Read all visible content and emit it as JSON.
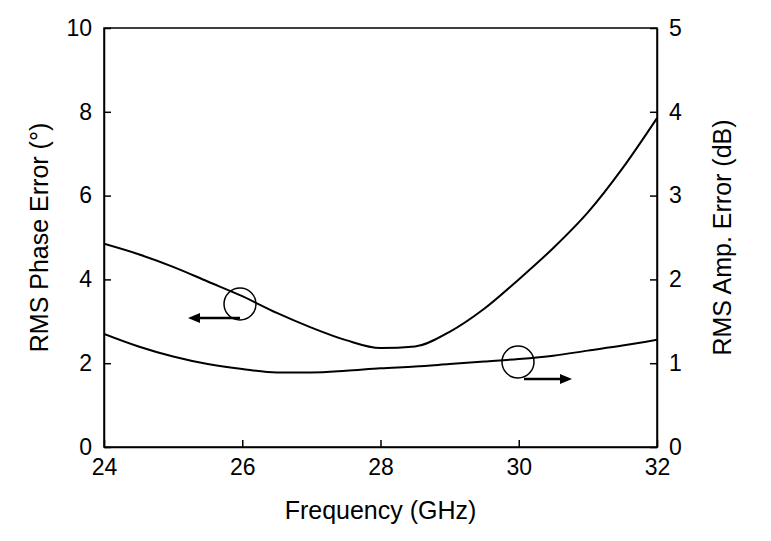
{
  "chart_data": {
    "type": "line",
    "x_label": "Frequency (GHz)",
    "y_label": "RMS Phase Error (°)",
    "y2_label": "RMS Amp. Error (dB)",
    "x": [
      24,
      24.5,
      25,
      25.5,
      26,
      26.5,
      27,
      27.5,
      28,
      28.5,
      29,
      29.5,
      30,
      30.5,
      31,
      31.5,
      32
    ],
    "series": [
      {
        "color": "#000000",
        "values": [
          4.85,
          4.6,
          4.3,
          3.95,
          3.6,
          3.2,
          2.85,
          2.55,
          2.36,
          2.4,
          2.75,
          3.3,
          4.0,
          4.75,
          5.6,
          6.65,
          7.85
        ]
      },
      {
        "color": "#000000",
        "axis": "y2",
        "values": [
          1.35,
          1.2,
          1.08,
          0.99,
          0.93,
          0.89,
          0.89,
          0.91,
          0.94,
          0.96,
          0.99,
          1.02,
          1.05,
          1.09,
          1.15,
          1.21,
          1.28
        ]
      }
    ],
    "xlim": [
      24,
      32
    ],
    "xticks": [
      24,
      26,
      28,
      30,
      32
    ],
    "ylim": [
      0,
      10
    ],
    "yticks": [
      0,
      2,
      4,
      6,
      8,
      10
    ],
    "y2lim": [
      0,
      5
    ],
    "y2ticks": [
      0,
      1,
      2,
      3,
      4,
      5
    ],
    "grid": false
  }
}
